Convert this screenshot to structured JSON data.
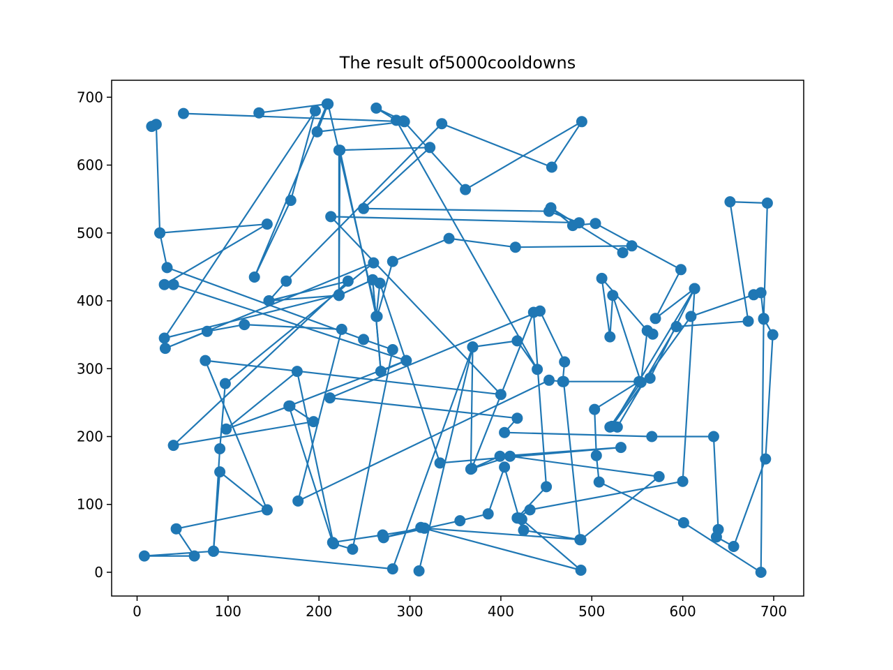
{
  "chart_data": {
    "type": "line",
    "title": "The result of5000cooldowns",
    "xlabel": "",
    "ylabel": "",
    "xlim": [
      -28,
      733
    ],
    "ylim": [
      -35,
      725
    ],
    "xticks": [
      0,
      100,
      200,
      300,
      400,
      500,
      600,
      700
    ],
    "xtick_labels": [
      "0",
      "100",
      "200",
      "300",
      "400",
      "500",
      "600",
      "700"
    ],
    "yticks": [
      0,
      100,
      200,
      300,
      400,
      500,
      600,
      700
    ],
    "ytick_labels": [
      "0",
      "100",
      "200",
      "300",
      "400",
      "500",
      "600",
      "700"
    ],
    "grid": false,
    "series": [
      {
        "marker": "circle",
        "color": "#1f77b4",
        "points": [
          [
            16,
            657
          ],
          [
            21,
            660
          ],
          [
            25,
            500
          ],
          [
            143,
            513
          ],
          [
            30,
            424
          ],
          [
            40,
            424
          ],
          [
            296,
            312
          ],
          [
            268,
            296
          ],
          [
            259,
            431
          ],
          [
            222,
            408
          ],
          [
            222,
            622
          ],
          [
            322,
            626
          ],
          [
            249,
            536
          ],
          [
            453,
            532
          ],
          [
            486,
            515
          ],
          [
            213,
            524
          ],
          [
            400,
            262
          ],
          [
            75,
            312
          ],
          [
            143,
            92
          ],
          [
            91,
            148
          ],
          [
            84,
            31
          ],
          [
            281,
            5
          ],
          [
            369,
            332
          ],
          [
            418,
            341
          ],
          [
            440,
            299
          ],
          [
            285,
            666
          ],
          [
            263,
            684
          ],
          [
            293,
            665
          ],
          [
            361,
            564
          ],
          [
            489,
            664
          ],
          [
            456,
            597
          ],
          [
            335,
            661
          ],
          [
            164,
            429
          ],
          [
            145,
            400
          ],
          [
            232,
            429
          ],
          [
            40,
            187
          ],
          [
            194,
            222
          ],
          [
            168,
            245
          ],
          [
            98,
            211
          ],
          [
            176,
            296
          ],
          [
            216,
            42
          ],
          [
            237,
            34
          ],
          [
            281,
            328
          ],
          [
            249,
            343
          ],
          [
            33,
            449
          ],
          [
            25,
            500
          ]
        ]
      },
      {
        "marker": "circle",
        "color": "#1f77b4",
        "points": [
          [
            51,
            676
          ],
          [
            294,
            664
          ],
          [
            198,
            649
          ],
          [
            210,
            690
          ],
          [
            264,
            377
          ],
          [
            281,
            458
          ],
          [
            343,
            492
          ],
          [
            416,
            479
          ],
          [
            544,
            481
          ],
          [
            534,
            471
          ],
          [
            455,
            537
          ],
          [
            479,
            511
          ],
          [
            504,
            514
          ],
          [
            598,
            446
          ],
          [
            570,
            374
          ],
          [
            613,
            418
          ],
          [
            522,
            215
          ],
          [
            609,
            377
          ],
          [
            678,
            409
          ],
          [
            686,
            412
          ],
          [
            689,
            374
          ],
          [
            699,
            350
          ],
          [
            691,
            167
          ],
          [
            656,
            38
          ],
          [
            637,
            52
          ],
          [
            639,
            63
          ],
          [
            634,
            200
          ],
          [
            566,
            200
          ],
          [
            404,
            206
          ],
          [
            418,
            227
          ],
          [
            212,
            257
          ],
          [
            443,
            385
          ],
          [
            470,
            310
          ],
          [
            468,
            281
          ],
          [
            453,
            283
          ],
          [
            177,
            105
          ],
          [
            225,
            358
          ],
          [
            118,
            365
          ],
          [
            77,
            355
          ],
          [
            31,
            330
          ],
          [
            260,
            456
          ],
          [
            97,
            278
          ],
          [
            91,
            182
          ],
          [
            84,
            31
          ],
          [
            8,
            24
          ],
          [
            63,
            24
          ],
          [
            43,
            64
          ],
          [
            143,
            92
          ]
        ]
      },
      {
        "marker": "circle",
        "color": "#1f77b4",
        "points": [
          [
            134,
            677
          ],
          [
            209,
            690
          ],
          [
            129,
            435
          ],
          [
            169,
            548
          ],
          [
            196,
            680
          ],
          [
            30,
            345
          ],
          [
            222,
            409
          ],
          [
            223,
            622
          ],
          [
            263,
            377
          ],
          [
            267,
            426
          ],
          [
            333,
            161
          ],
          [
            532,
            184
          ],
          [
            399,
            171
          ],
          [
            368,
            153
          ],
          [
            436,
            383
          ],
          [
            450,
            126
          ],
          [
            418,
            80
          ],
          [
            432,
            92
          ],
          [
            600,
            134
          ],
          [
            613,
            418
          ],
          [
            564,
            286
          ],
          [
            554,
            280
          ],
          [
            561,
            356
          ],
          [
            567,
            351
          ],
          [
            561,
            356
          ],
          [
            511,
            433
          ],
          [
            520,
            347
          ],
          [
            523,
            408
          ],
          [
            554,
            280
          ],
          [
            520,
            214
          ],
          [
            528,
            214
          ],
          [
            593,
            362
          ],
          [
            672,
            370
          ],
          [
            652,
            546
          ],
          [
            693,
            544
          ],
          [
            689,
            373
          ],
          [
            686,
            0
          ],
          [
            601,
            73
          ],
          [
            508,
            133
          ],
          [
            505,
            172
          ],
          [
            503,
            240
          ],
          [
            552,
            281
          ],
          [
            469,
            281
          ],
          [
            487,
            48
          ],
          [
            425,
            62
          ],
          [
            418,
            80
          ],
          [
            420,
            80
          ],
          [
            404,
            155
          ],
          [
            386,
            86
          ],
          [
            355,
            76
          ],
          [
            271,
            51
          ],
          [
            312,
            66
          ],
          [
            488,
            3
          ],
          [
            423,
            78
          ]
        ]
      },
      {
        "marker": "circle",
        "color": "#1f77b4",
        "points": [
          [
            310,
            2
          ],
          [
            369,
            332
          ],
          [
            367,
            152
          ],
          [
            410,
            171
          ],
          [
            574,
            141
          ],
          [
            488,
            48
          ],
          [
            316,
            65
          ],
          [
            270,
            55
          ],
          [
            215,
            44
          ],
          [
            167,
            245
          ],
          [
            296,
            312
          ],
          [
            268,
            296
          ],
          [
            259,
            431
          ],
          [
            222,
            408
          ],
          [
            145,
            400
          ]
        ]
      }
    ]
  }
}
